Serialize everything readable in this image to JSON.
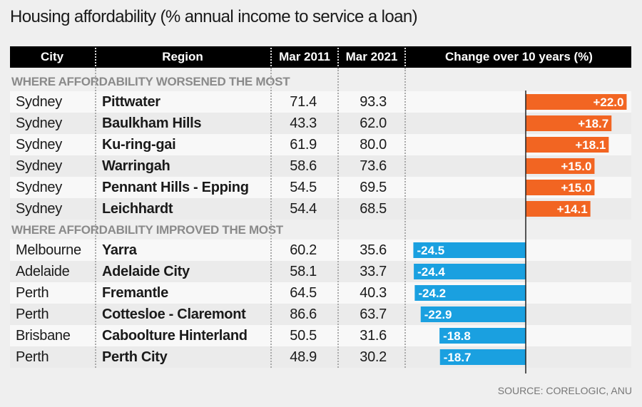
{
  "title": "Housing affordability (% annual income to service a loan)",
  "source": "SOURCE: CORELOGIC, ANU",
  "colors": {
    "positive": "#f26522",
    "negative": "#1aa0e0",
    "header_bg": "#000000",
    "section_text": "#8a8a8a"
  },
  "chart_data": {
    "type": "table",
    "title": "Housing affordability (% annual income to service a loan)",
    "columns": [
      "City",
      "Region",
      "Mar 2011",
      "Mar 2021",
      "Change over 10 years (%)"
    ],
    "bar_axis": {
      "baseline": 0,
      "range": [
        -26,
        24
      ]
    },
    "sections": [
      {
        "label": "WHERE AFFORDABILITY WORSENED THE MOST",
        "rows": [
          {
            "city": "Sydney",
            "region": "Pittwater",
            "mar2011": "71.4",
            "mar2021": "93.3",
            "change": 22.0,
            "change_label": "+22.0"
          },
          {
            "city": "Sydney",
            "region": "Baulkham Hills",
            "mar2011": "43.3",
            "mar2021": "62.0",
            "change": 18.7,
            "change_label": "+18.7"
          },
          {
            "city": "Sydney",
            "region": "Ku-ring-gai",
            "mar2011": "61.9",
            "mar2021": "80.0",
            "change": 18.1,
            "change_label": "+18.1"
          },
          {
            "city": "Sydney",
            "region": "Warringah",
            "mar2011": "58.6",
            "mar2021": "73.6",
            "change": 15.0,
            "change_label": "+15.0"
          },
          {
            "city": "Sydney",
            "region": "Pennant Hills - Epping",
            "mar2011": "54.5",
            "mar2021": "69.5",
            "change": 15.0,
            "change_label": "+15.0"
          },
          {
            "city": "Sydney",
            "region": "Leichhardt",
            "mar2011": "54.4",
            "mar2021": "68.5",
            "change": 14.1,
            "change_label": "+14.1"
          }
        ]
      },
      {
        "label": "WHERE AFFORDABILITY IMPROVED THE MOST",
        "rows": [
          {
            "city": "Melbourne",
            "region": "Yarra",
            "mar2011": "60.2",
            "mar2021": "35.6",
            "change": -24.5,
            "change_label": "-24.5"
          },
          {
            "city": "Adelaide",
            "region": "Adelaide City",
            "mar2011": "58.1",
            "mar2021": "33.7",
            "change": -24.4,
            "change_label": "-24.4"
          },
          {
            "city": "Perth",
            "region": "Fremantle",
            "mar2011": "64.5",
            "mar2021": "40.3",
            "change": -24.2,
            "change_label": "-24.2"
          },
          {
            "city": "Perth",
            "region": "Cottesloe - Claremont",
            "mar2011": "86.6",
            "mar2021": "63.7",
            "change": -22.9,
            "change_label": "-22.9"
          },
          {
            "city": "Brisbane",
            "region": "Caboolture Hinterland",
            "mar2011": "50.5",
            "mar2021": "31.6",
            "change": -18.8,
            "change_label": "-18.8"
          },
          {
            "city": "Perth",
            "region": "Perth City",
            "mar2011": "48.9",
            "mar2021": "30.2",
            "change": -18.7,
            "change_label": "-18.7"
          }
        ]
      }
    ]
  }
}
